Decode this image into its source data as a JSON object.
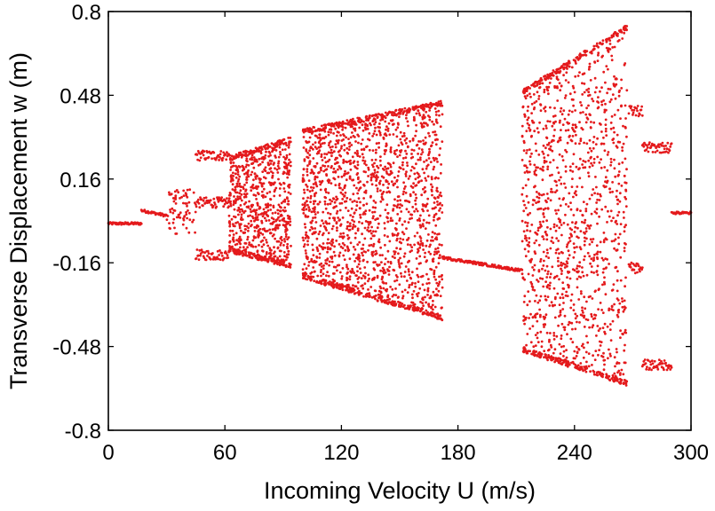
{
  "chart_data": {
    "type": "scatter",
    "title": "",
    "xlabel": "Incoming  Velocity  U  (m/s)",
    "ylabel": "Transverse  Displacement  w  (m)",
    "xlim": [
      0,
      300
    ],
    "ylim": [
      -0.8,
      0.8
    ],
    "xticks": [
      "0",
      "60",
      "120",
      "180",
      "240",
      "300"
    ],
    "yticks": [
      "0.8",
      "0.48",
      "0.16",
      "-0.16",
      "-0.48",
      "-0.8"
    ],
    "grid": false,
    "legend": "none",
    "marker_color": "#e41a1c",
    "series": [
      {
        "regimes": [
          {
            "u": [
              0,
              17
            ],
            "kind": "line",
            "w": -0.01
          },
          {
            "u": [
              17,
              30
            ],
            "kind": "line",
            "w": [
              0.04,
              0.02
            ]
          },
          {
            "u": [
              30,
              45
            ],
            "kind": "scatter",
            "w": [
              -0.05,
              0.12
            ]
          },
          {
            "u": [
              45,
              62
            ],
            "kind": "branches",
            "w": [
              0.25,
              0.07,
              -0.13
            ]
          },
          {
            "u": [
              62,
              94
            ],
            "kind": "chaos",
            "w_upper": [
              0.25,
              0.32
            ],
            "w_lower": [
              -0.12,
              -0.18
            ]
          },
          {
            "u": [
              100,
              172
            ],
            "kind": "chaos",
            "w_upper": [
              0.35,
              0.46
            ],
            "w_lower": [
              -0.22,
              -0.38
            ]
          },
          {
            "u": [
              172,
              213
            ],
            "kind": "line",
            "w": [
              -0.14,
              -0.19
            ]
          },
          {
            "u": [
              213,
              267
            ],
            "kind": "chaos",
            "w_upper": [
              0.5,
              0.75
            ],
            "w_lower": [
              -0.5,
              -0.63
            ]
          },
          {
            "u": [
              268,
              275
            ],
            "kind": "branches",
            "w": [
              0.42,
              -0.18
            ]
          },
          {
            "u": [
              275,
              290
            ],
            "kind": "branches",
            "w": [
              0.28,
              -0.55
            ]
          },
          {
            "u": [
              290,
              300
            ],
            "kind": "line",
            "w": 0.03
          }
        ]
      }
    ]
  }
}
